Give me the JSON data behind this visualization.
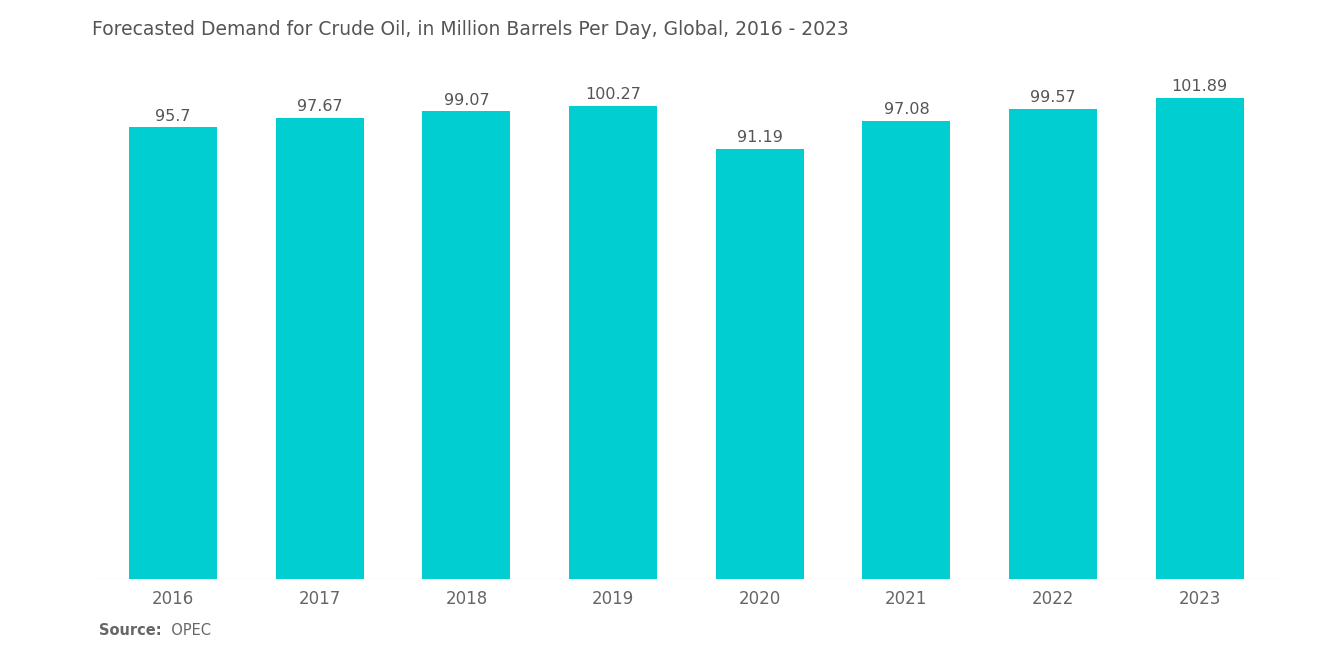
{
  "title": "Forecasted Demand for Crude Oil, in Million Barrels Per Day, Global, 2016 - 2023",
  "categories": [
    "2016",
    "2017",
    "2018",
    "2019",
    "2020",
    "2021",
    "2022",
    "2023"
  ],
  "values": [
    95.7,
    97.67,
    99.07,
    100.27,
    91.19,
    97.08,
    99.57,
    101.89
  ],
  "bar_color": "#00CED1",
  "background_color": "#ffffff",
  "title_color": "#555555",
  "label_color": "#666666",
  "value_label_color": "#555555",
  "source_bold": "Source:",
  "source_normal": "  OPEC",
  "ylim_min": 0,
  "ylim_max": 110,
  "title_fontsize": 13.5,
  "tick_fontsize": 12,
  "value_fontsize": 11.5,
  "bar_width": 0.6
}
